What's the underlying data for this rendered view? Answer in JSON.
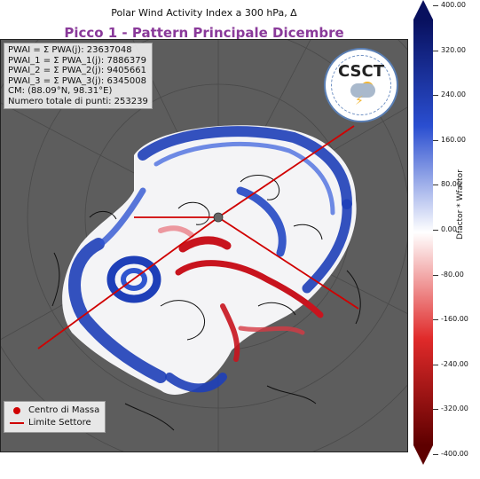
{
  "header": {
    "title": "Polar Wind Activity Index a 300 hPa, Δ",
    "subtitle": "Picco 1 - Pattern Principale Dicembre"
  },
  "stats": [
    "PWAI = Σ PWA(j): 23637048",
    "PWAI_1 = Σ PWA_1(j): 7886379",
    "PWAI_2 = Σ PWA_2(j): 9405661",
    "PWAI_3 = Σ PWA_3(j): 6345008",
    "CM: (88.09°N, 98.31°E)",
    "Numero totale di punti: 253239"
  ],
  "logo": {
    "text": "CSCT",
    "ring_color": "#5a7fb5"
  },
  "legend": {
    "mass_center": "Centro di Massa",
    "sector_limit": "Limite Settore"
  },
  "colorbar": {
    "label": "Dfactor * Wfactor",
    "ticks": [
      "400.00",
      "320.00",
      "240.00",
      "160.00",
      "80.00",
      "0.00",
      "-80.00",
      "-160.00",
      "-240.00",
      "-320.00",
      "-400.00"
    ],
    "range": [
      -400,
      400
    ],
    "colors": {
      "max": "#08105e",
      "mid": "#ffffff",
      "min": "#5e0000"
    }
  },
  "map_colors": {
    "land_background": "#5d5d5d",
    "positive": "#1e3fb8",
    "negative": "#c8141e",
    "sector_line": "#d00000",
    "mass_center_marker": "#666666"
  }
}
